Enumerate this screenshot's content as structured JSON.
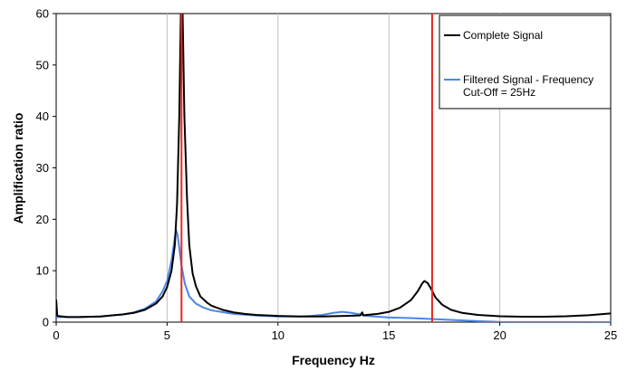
{
  "chart_data": {
    "type": "line",
    "title": "",
    "xlabel": "Frequency Hz",
    "ylabel": "Amplification ratio",
    "xlim": [
      0,
      25
    ],
    "ylim": [
      0,
      60
    ],
    "x_ticks": [
      0,
      5,
      10,
      15,
      20,
      25
    ],
    "y_ticks": [
      0,
      10,
      20,
      30,
      40,
      50,
      60
    ],
    "grid": "vertical",
    "legend_position": "top-right",
    "colors": {
      "complete": "#000000",
      "filtered": "#4a86e8",
      "markers": "#e8281e",
      "grid": "#c0c0c0"
    },
    "series": [
      {
        "name": "Complete Signal",
        "color": "#000000",
        "points": [
          [
            0.0,
            4.4
          ],
          [
            0.05,
            1.2
          ],
          [
            0.5,
            1.0
          ],
          [
            1.0,
            1.0
          ],
          [
            2.0,
            1.1
          ],
          [
            3.0,
            1.5
          ],
          [
            3.5,
            1.8
          ],
          [
            4.0,
            2.4
          ],
          [
            4.5,
            3.6
          ],
          [
            4.8,
            5.0
          ],
          [
            5.0,
            6.8
          ],
          [
            5.2,
            10.0
          ],
          [
            5.35,
            15.0
          ],
          [
            5.45,
            23.0
          ],
          [
            5.55,
            40.0
          ],
          [
            5.62,
            60.0
          ],
          [
            5.7,
            60.0
          ],
          [
            5.78,
            40.0
          ],
          [
            5.9,
            24.0
          ],
          [
            6.0,
            15.0
          ],
          [
            6.15,
            9.5
          ],
          [
            6.3,
            7.0
          ],
          [
            6.5,
            5.0
          ],
          [
            6.8,
            3.8
          ],
          [
            7.0,
            3.2
          ],
          [
            7.5,
            2.4
          ],
          [
            8.0,
            1.9
          ],
          [
            8.5,
            1.6
          ],
          [
            9.0,
            1.4
          ],
          [
            10.0,
            1.2
          ],
          [
            11.0,
            1.1
          ],
          [
            12.0,
            1.1
          ],
          [
            13.0,
            1.2
          ],
          [
            13.7,
            1.3
          ],
          [
            13.8,
            1.9
          ],
          [
            13.85,
            1.3
          ],
          [
            14.0,
            1.4
          ],
          [
            14.5,
            1.6
          ],
          [
            15.0,
            2.0
          ],
          [
            15.5,
            2.8
          ],
          [
            16.0,
            4.3
          ],
          [
            16.3,
            6.0
          ],
          [
            16.5,
            7.5
          ],
          [
            16.6,
            8.0
          ],
          [
            16.75,
            7.6
          ],
          [
            16.9,
            6.5
          ],
          [
            17.1,
            4.8
          ],
          [
            17.4,
            3.4
          ],
          [
            17.8,
            2.4
          ],
          [
            18.3,
            1.8
          ],
          [
            19.0,
            1.4
          ],
          [
            20.0,
            1.15
          ],
          [
            21.0,
            1.05
          ],
          [
            22.0,
            1.05
          ],
          [
            23.0,
            1.15
          ],
          [
            24.0,
            1.35
          ],
          [
            25.0,
            1.7
          ]
        ]
      },
      {
        "name": "Filtered Signal - Frequency Cut-Off = 25Hz",
        "color": "#4a86e8",
        "points": [
          [
            0.0,
            1.0
          ],
          [
            1.0,
            1.0
          ],
          [
            2.0,
            1.1
          ],
          [
            3.0,
            1.5
          ],
          [
            3.5,
            1.9
          ],
          [
            4.0,
            2.6
          ],
          [
            4.5,
            4.0
          ],
          [
            4.8,
            6.0
          ],
          [
            5.0,
            8.0
          ],
          [
            5.2,
            12.0
          ],
          [
            5.35,
            16.5
          ],
          [
            5.4,
            18.0
          ],
          [
            5.47,
            17.0
          ],
          [
            5.55,
            14.5
          ],
          [
            5.65,
            11.0
          ],
          [
            5.8,
            7.5
          ],
          [
            6.0,
            5.0
          ],
          [
            6.3,
            3.6
          ],
          [
            6.6,
            2.9
          ],
          [
            7.0,
            2.3
          ],
          [
            8.0,
            1.6
          ],
          [
            9.0,
            1.3
          ],
          [
            10.0,
            1.1
          ],
          [
            11.0,
            1.1
          ],
          [
            11.5,
            1.2
          ],
          [
            12.0,
            1.4
          ],
          [
            12.5,
            1.8
          ],
          [
            12.9,
            2.0
          ],
          [
            13.3,
            1.8
          ],
          [
            13.7,
            1.5
          ],
          [
            14.0,
            1.2
          ],
          [
            15.0,
            0.9
          ],
          [
            16.0,
            0.8
          ],
          [
            17.0,
            0.6
          ],
          [
            18.0,
            0.4
          ],
          [
            19.0,
            0.2
          ],
          [
            20.0,
            0.05
          ],
          [
            25.0,
            0.0
          ]
        ]
      }
    ],
    "vertical_markers": [
      5.65,
      16.95
    ],
    "legend": {
      "complete_label": "Complete Signal",
      "filtered_line1": "Filtered Signal - Frequency",
      "filtered_line2": "Cut-Off = 25Hz"
    }
  }
}
